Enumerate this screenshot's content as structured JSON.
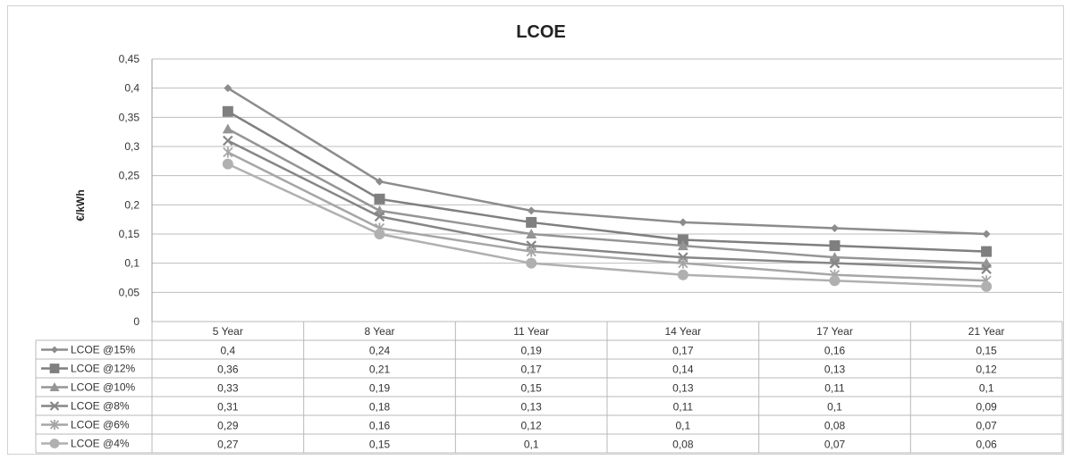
{
  "chart_data": {
    "type": "line",
    "title": "LCOE",
    "xlabel": "",
    "ylabel": "€/kWh",
    "ylim": [
      0,
      0.45
    ],
    "yticks": [
      "0",
      "0,05",
      "0,1",
      "0,15",
      "0,2",
      "0,25",
      "0,3",
      "0,35",
      "0,4",
      "0,45"
    ],
    "grid": true,
    "legend_placement": "data-table-left",
    "categories": [
      "5 Year",
      "8 Year",
      "11 Year",
      "14 Year",
      "17 Year",
      "21 Year"
    ],
    "series": [
      {
        "name": "LCOE @15%",
        "marker": "diamond",
        "color": "#8c8c8c",
        "values": [
          0.4,
          0.24,
          0.19,
          0.17,
          0.16,
          0.15
        ],
        "labels": [
          "0,4",
          "0,24",
          "0,19",
          "0,17",
          "0,16",
          "0,15"
        ]
      },
      {
        "name": "LCOE @12%",
        "marker": "square",
        "color": "#7f7f7f",
        "values": [
          0.36,
          0.21,
          0.17,
          0.14,
          0.13,
          0.12
        ],
        "labels": [
          "0,36",
          "0,21",
          "0,17",
          "0,14",
          "0,13",
          "0,12"
        ]
      },
      {
        "name": "LCOE @10%",
        "marker": "triangle",
        "color": "#959595",
        "values": [
          0.33,
          0.19,
          0.15,
          0.13,
          0.11,
          0.1
        ],
        "labels": [
          "0,33",
          "0,19",
          "0,15",
          "0,13",
          "0,11",
          "0,1"
        ]
      },
      {
        "name": "LCOE @8%",
        "marker": "x",
        "color": "#868686",
        "values": [
          0.31,
          0.18,
          0.13,
          0.11,
          0.1,
          0.09
        ],
        "labels": [
          "0,31",
          "0,18",
          "0,13",
          "0,11",
          "0,1",
          "0,09"
        ]
      },
      {
        "name": "LCOE @6%",
        "marker": "star",
        "color": "#a6a6a6",
        "values": [
          0.29,
          0.16,
          0.12,
          0.1,
          0.08,
          0.07
        ],
        "labels": [
          "0,29",
          "0,16",
          "0,12",
          "0,1",
          "0,08",
          "0,07"
        ]
      },
      {
        "name": "LCOE @4%",
        "marker": "circle",
        "color": "#b0b0b0",
        "values": [
          0.27,
          0.15,
          0.1,
          0.08,
          0.07,
          0.06
        ],
        "labels": [
          "0,27",
          "0,15",
          "0,1",
          "0,08",
          "0,07",
          "0,06"
        ]
      }
    ]
  }
}
